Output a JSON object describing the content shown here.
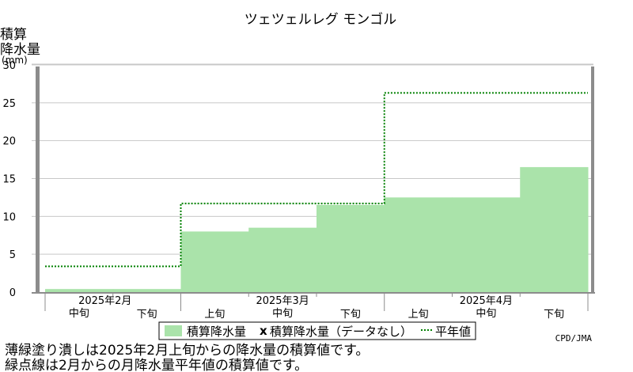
{
  "chart_data": {
    "type": "bar",
    "title": "ツェツェルレグ モンゴル",
    "ylabel_lines": [
      "積算",
      "降水量"
    ],
    "yunit": "(mm)",
    "ylim": [
      0,
      30
    ],
    "yticks": [
      0,
      5,
      10,
      15,
      20,
      25,
      30
    ],
    "grid": true,
    "categories": [
      "中旬",
      "下旬",
      "上旬",
      "中旬",
      "下旬",
      "上旬",
      "中旬",
      "下旬"
    ],
    "months": [
      "2025年2月",
      "2025年3月",
      "2025年4月"
    ],
    "series": [
      {
        "name": "積算降水量",
        "values": [
          0.4,
          0.4,
          8.0,
          8.5,
          11.5,
          12.5,
          12.5,
          16.5
        ],
        "color": "#aae3aa"
      },
      {
        "name": "平年値",
        "values": [
          3.4,
          3.4,
          11.7,
          11.7,
          11.7,
          26.3,
          26.3,
          26.3
        ],
        "color": "#008000"
      }
    ],
    "legend": {
      "placement": "bottom",
      "items": [
        "積算降水量",
        "積算降水量（データなし）",
        "平年値"
      ],
      "missing_marker": "x"
    },
    "credit": "CPD/JMA"
  },
  "notes": [
    "薄緑塗り潰しは2025年2月上旬からの降水量の積算値です。",
    "緑点線は2月からの月降水量平年値の積算値です。"
  ]
}
